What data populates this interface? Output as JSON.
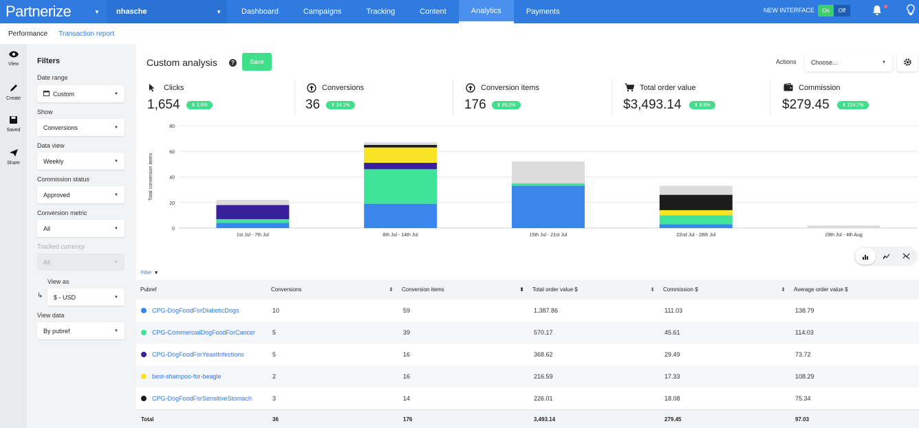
{
  "topbar": {
    "brand": "Partnerize",
    "account": "nhasche",
    "nav": [
      "Dashboard",
      "Campaigns",
      "Tracking",
      "Content",
      "Analytics",
      "Payments"
    ],
    "active_nav": "Analytics",
    "new_interface_label": "NEW INTERFACE",
    "toggle_on": "On",
    "toggle_off": "Off",
    "accent_color": "#2f7bdf"
  },
  "subnav": {
    "performance": "Performance",
    "transaction_report": "Transaction report"
  },
  "rail": {
    "view": "View",
    "create": "Create",
    "saved": "Saved",
    "share": "Share"
  },
  "filters": {
    "title": "Filters",
    "date_range": {
      "label": "Date range",
      "value": "Custom"
    },
    "show": {
      "label": "Show",
      "value": "Conversions"
    },
    "data_view": {
      "label": "Data view",
      "value": "Weekly"
    },
    "commission_status": {
      "label": "Commission status",
      "value": "Approved"
    },
    "conversion_metric": {
      "label": "Conversion metric",
      "value": "All"
    },
    "tracked_currency": {
      "label": "Tracked currency",
      "value": "All"
    },
    "view_as": {
      "label": "View as",
      "value": "$ - USD"
    },
    "view_data": {
      "label": "View data",
      "value": "By pubref"
    }
  },
  "header": {
    "title": "Custom analysis",
    "help": "?",
    "save_label": "Save",
    "actions_label": "Actions",
    "actions_placeholder": "Choose..."
  },
  "kpis": [
    {
      "name": "Clicks",
      "value": "1,654",
      "change": "2.6%",
      "icon": "cursor-icon"
    },
    {
      "name": "Conversions",
      "value": "36",
      "change": "24.1%",
      "icon": "up-circle-icon"
    },
    {
      "name": "Conversion items",
      "value": "176",
      "change": "69.2%",
      "icon": "up-circle-icon"
    },
    {
      "name": "Total order value",
      "value": "$3,493.14",
      "change": "8.8%",
      "icon": "cart-icon"
    },
    {
      "name": "Commission",
      "value": "$279.45",
      "change": "214.7%",
      "icon": "wallet-icon"
    }
  ],
  "chart_data": {
    "type": "bar",
    "stacked": true,
    "categories": [
      "1st Jul - 7th Jul",
      "8th Jul - 14th Jul",
      "15th Jul - 21st Jul",
      "22nd Jul - 28th Jul",
      "29th Jul - 4th Aug"
    ],
    "ylabel": "Total conversion items",
    "ylim": [
      0,
      80
    ],
    "yticks": [
      0,
      20,
      40,
      60,
      80
    ],
    "grid": true,
    "series": [
      {
        "name": "CPG-DogFoodForDiabeticDogs",
        "color": "#3a86ec",
        "values": [
          4,
          19,
          33,
          3,
          0
        ]
      },
      {
        "name": "CPG-CommercialDogFoodForCancer",
        "color": "#3fe39a",
        "values": [
          3,
          27,
          2,
          7,
          0
        ]
      },
      {
        "name": "CPG-DogFoodForYeastInfections",
        "color": "#3a1f9a",
        "values": [
          11,
          5,
          0,
          0,
          0
        ]
      },
      {
        "name": "best-shampoo-for-beagle",
        "color": "#f8e324",
        "values": [
          0,
          12,
          0,
          4,
          0
        ]
      },
      {
        "name": "CPG-DogFoodForSensitiveStomach",
        "color": "#1c1c1c",
        "values": [
          0,
          2,
          0,
          12,
          0
        ]
      },
      {
        "name": "",
        "color": "#dcdcdc",
        "values": [
          4,
          2,
          17,
          7,
          2
        ]
      }
    ]
  },
  "chart_toggle": [
    "bar-chart-icon",
    "line-chart-icon",
    "hide-chart-icon"
  ],
  "table": {
    "filter_label": "Filter",
    "columns": [
      "Pubref",
      "Conversions",
      "Conversion items",
      "Total order value $",
      "Commission $",
      "Average order value $"
    ],
    "rows": [
      {
        "pubref": "CPG-DogFoodForDiabeticDogs",
        "color": "#3a86ec",
        "conversions": "10",
        "items": "59",
        "tov": "1,387.86",
        "commission": "111.03",
        "aov": "138.79"
      },
      {
        "pubref": "CPG-CommercialDogFoodForCancer",
        "color": "#3fe39a",
        "conversions": "5",
        "items": "39",
        "tov": "570.17",
        "commission": "45.61",
        "aov": "114.03"
      },
      {
        "pubref": "CPG-DogFoodForYeastInfections",
        "color": "#3a1f9a",
        "conversions": "5",
        "items": "16",
        "tov": "368.62",
        "commission": "29.49",
        "aov": "73.72"
      },
      {
        "pubref": "best-shampoo-for-beagle",
        "color": "#f8e324",
        "conversions": "2",
        "items": "16",
        "tov": "216.59",
        "commission": "17.33",
        "aov": "108.29"
      },
      {
        "pubref": "CPG-DogFoodForSensitiveStomach",
        "color": "#1c1c1c",
        "conversions": "3",
        "items": "14",
        "tov": "226.01",
        "commission": "18.08",
        "aov": "75.34"
      }
    ],
    "total": {
      "label": "Total",
      "conversions": "36",
      "items": "176",
      "tov": "3,493.14",
      "commission": "279.45",
      "aov": "97.03"
    }
  }
}
